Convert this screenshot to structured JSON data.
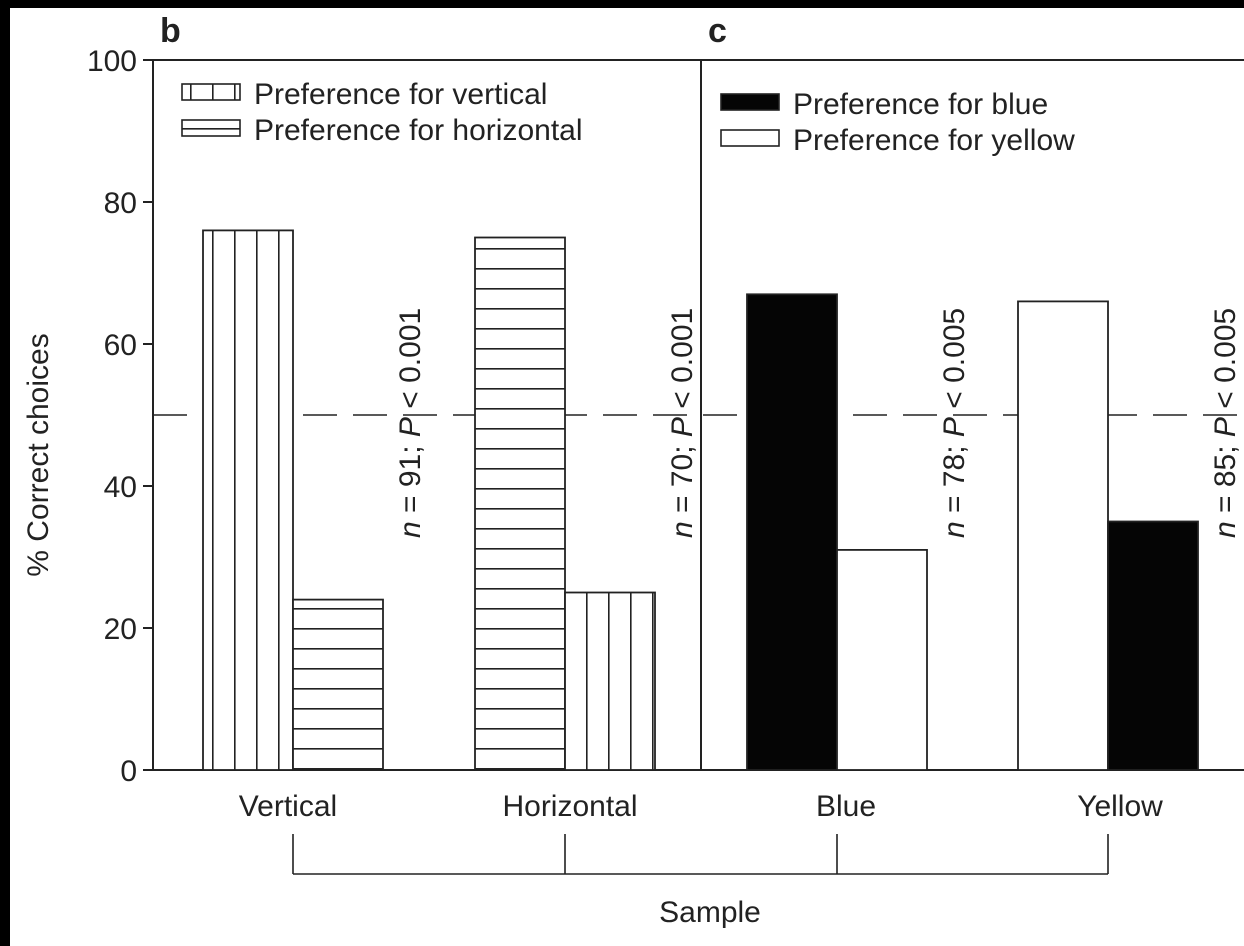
{
  "chart_data": {
    "type": "bar",
    "ylabel": "% Correct choices",
    "xlabel": "Sample",
    "ylim": [
      0,
      100
    ],
    "yticks": [
      0,
      20,
      40,
      60,
      80,
      100
    ],
    "chance_line": 50,
    "panels": [
      {
        "letter": "b",
        "legend": [
          {
            "label": "Preference for vertical",
            "pattern": "vertical"
          },
          {
            "label": "Preference for horizontal",
            "pattern": "horizontal"
          }
        ],
        "groups": [
          {
            "category": "Vertical",
            "bars": [
              {
                "series": "Preference for vertical",
                "value": 76,
                "pattern": "vertical"
              },
              {
                "series": "Preference for horizontal",
                "value": 24,
                "pattern": "horizontal"
              }
            ],
            "annotation": {
              "n": "n",
              "rest1": " = 91; ",
              "p": "P",
              "rest2": " < 0.001"
            }
          },
          {
            "category": "Horizontal",
            "bars": [
              {
                "series": "Preference for horizontal",
                "value": 75,
                "pattern": "horizontal"
              },
              {
                "series": "Preference for vertical",
                "value": 25,
                "pattern": "vertical"
              }
            ],
            "annotation": {
              "n": "n",
              "rest1": " = 70; ",
              "p": "P",
              "rest2": " < 0.001"
            }
          }
        ]
      },
      {
        "letter": "c",
        "legend": [
          {
            "label": "Preference for blue",
            "pattern": "black"
          },
          {
            "label": "Preference for yellow",
            "pattern": "white"
          }
        ],
        "groups": [
          {
            "category": "Blue",
            "bars": [
              {
                "series": "Preference for blue",
                "value": 67,
                "pattern": "black"
              },
              {
                "series": "Preference for yellow",
                "value": 31,
                "pattern": "white"
              }
            ],
            "annotation": {
              "n": "n",
              "rest1": " = 78; ",
              "p": "P",
              "rest2": " < 0.005"
            }
          },
          {
            "category": "Yellow",
            "bars": [
              {
                "series": "Preference for yellow",
                "value": 66,
                "pattern": "white"
              },
              {
                "series": "Preference for blue",
                "value": 35,
                "pattern": "black"
              }
            ],
            "annotation": {
              "n": "n",
              "rest1": " = 85; ",
              "p": "P",
              "rest2": " < 0.005"
            }
          }
        ]
      }
    ],
    "colors": {
      "ink": "#222222",
      "bar_dark": "#050505",
      "background": "#ffffff"
    }
  }
}
